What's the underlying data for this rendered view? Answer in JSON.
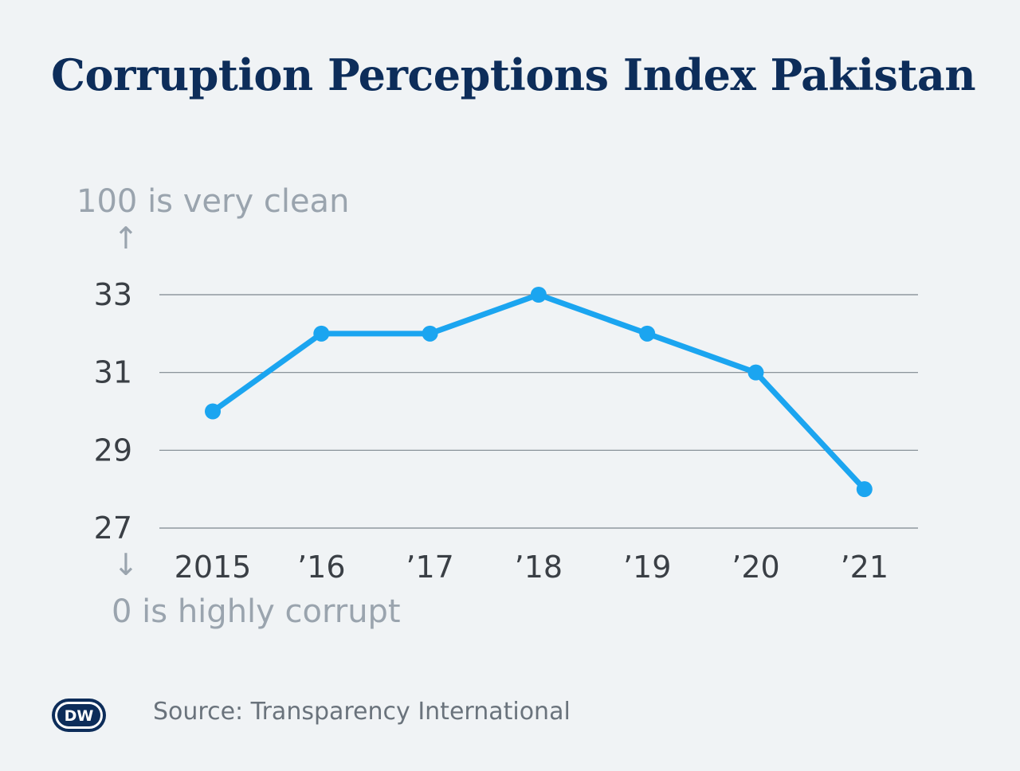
{
  "chart_data": {
    "type": "line",
    "title": "Corruption Perceptions Index Pakistan",
    "y_top_note": "100 is very clean",
    "y_bottom_note": "0 is highly corrupt",
    "y_top_arrow": "↑",
    "y_bottom_arrow": "↓",
    "categories": [
      "2015",
      "’16",
      "’17",
      "’18",
      "’19",
      "’20",
      "’21"
    ],
    "series": [
      {
        "values": [
          30,
          32,
          32,
          33,
          32,
          31,
          28
        ]
      }
    ],
    "yticks": [
      27,
      29,
      31,
      33
    ],
    "ylim": [
      27,
      33
    ],
    "grid": true,
    "line_color": "#1ba5f0"
  },
  "footer": {
    "logo_text": "DW",
    "source": "Source: Transparency International"
  }
}
